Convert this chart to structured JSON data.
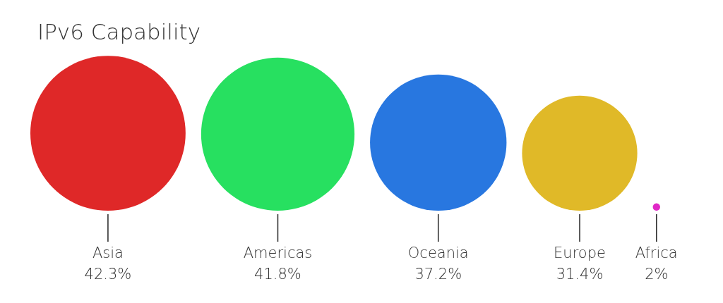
{
  "chart_data": {
    "type": "other",
    "title": "IPv6 Capability",
    "categories": [
      "Asia",
      "Americas",
      "Oceania",
      "Europe",
      "Africa"
    ],
    "values": [
      42.3,
      41.8,
      37.2,
      31.4,
      2
    ],
    "colors": [
      "#df2828",
      "#27e060",
      "#2877e0",
      "#e0b928",
      "#e028c6"
    ],
    "value_labels": [
      "42.3%",
      "41.8%",
      "37.2%",
      "31.4%",
      "2%"
    ]
  }
}
